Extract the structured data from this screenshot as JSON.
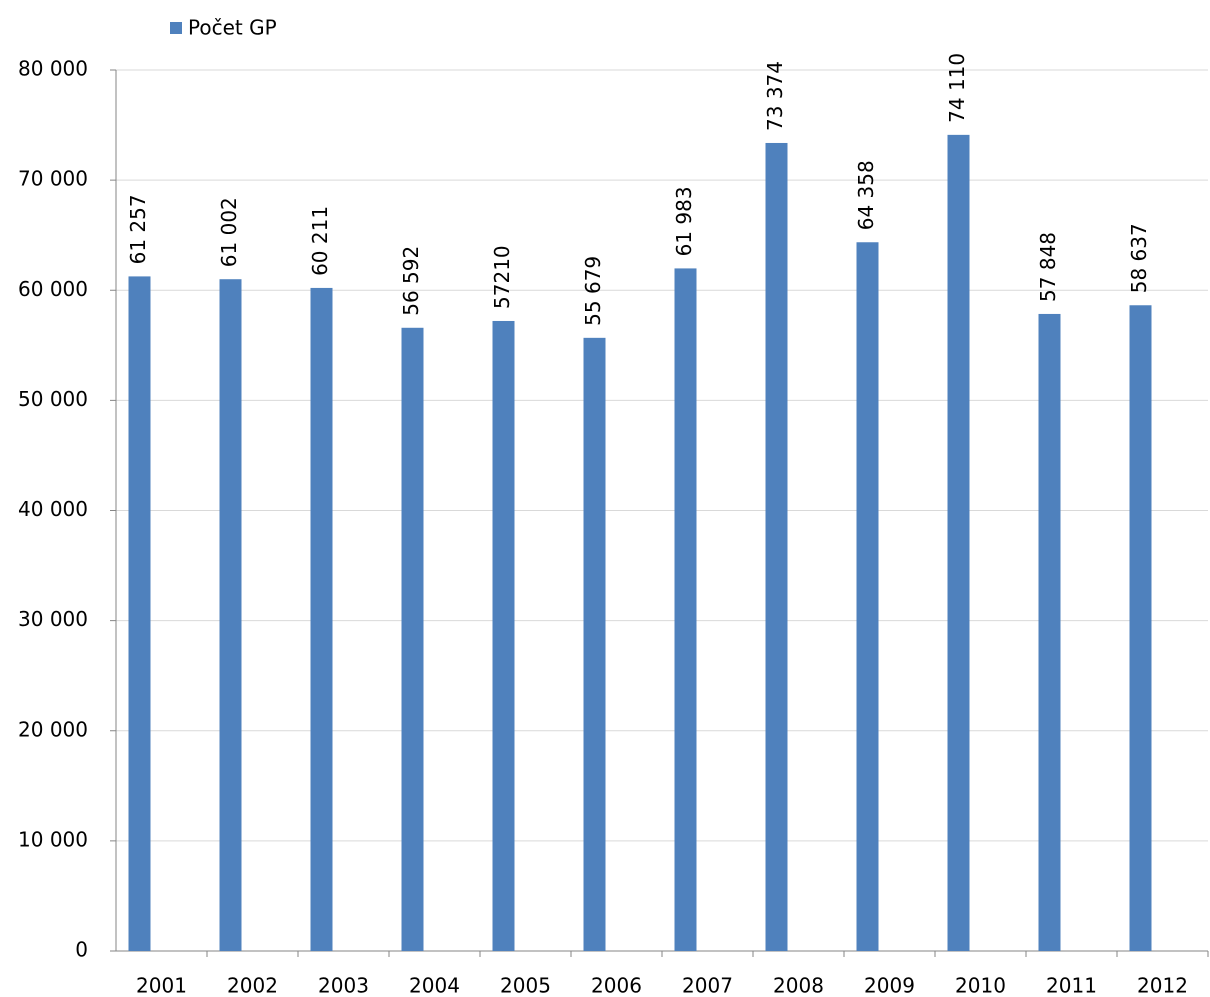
{
  "chart_data": {
    "type": "bar",
    "categories": [
      "2001",
      "2002",
      "2003",
      "2004",
      "2005",
      "2006",
      "2007",
      "2008",
      "2009",
      "2010",
      "2011",
      "2012"
    ],
    "series": [
      {
        "name": "Počet GP",
        "color": "#4f81bd",
        "values": [
          61257,
          61002,
          60211,
          56592,
          57210,
          55679,
          61983,
          73374,
          64358,
          74110,
          57848,
          58637
        ],
        "value_labels": [
          "61 257",
          "61 002",
          "60 211",
          "56 592",
          "57210",
          "55 679",
          "61 983",
          "73 374",
          "64 358",
          "74 110",
          "57 848",
          "58 637"
        ]
      }
    ],
    "ylim": [
      0,
      80000
    ],
    "yticks": [
      0,
      {
        "value": 10000,
        "label": "10 000"
      },
      {
        "value": 20000,
        "label": "20 000"
      },
      {
        "value": 30000,
        "label": "30 000"
      },
      {
        "value": 40000,
        "label": "40 000"
      },
      {
        "value": 50000,
        "label": "50 000"
      },
      {
        "value": 60000,
        "label": "60 000"
      },
      {
        "value": 70000,
        "label": "70 000"
      },
      {
        "value": 80000,
        "label": "80 000"
      }
    ],
    "grid": true,
    "legend": "top-left"
  }
}
